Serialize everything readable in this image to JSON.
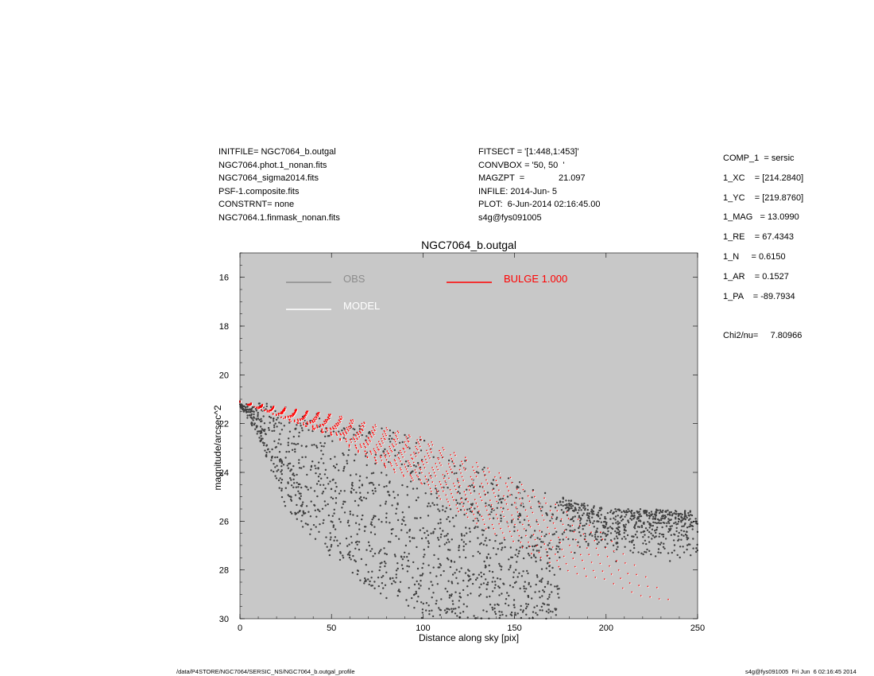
{
  "header_left": [
    "INITFILE= NGC7064_b.outgal",
    "NGC7064.phot.1_nonan.fits",
    "NGC7064_sigma2014.fits",
    "PSF-1.composite.fits",
    "CONSTRNT= none",
    "NGC7064.1.finmask_nonan.fits"
  ],
  "header_mid": [
    "FITSECT = '[1:448,1:453]'",
    "CONVBOX = '50, 50  '",
    "MAGZPT  =              21.097",
    "INFILE: 2014-Jun- 5",
    "PLOT:  6-Jun-2014 02:16:45.00",
    "s4g@fys091005"
  ],
  "header_right": [
    "COMP_1  = sersic",
    "1_XC    = [214.2840]",
    "1_YC    = [219.8760]",
    "1_MAG   = 13.0990",
    "1_RE    = 67.4343",
    "1_N     = 0.6150",
    "1_AR    = 0.1527",
    "1_PA    = -89.7934",
    "",
    "Chi2/nu=     7.80966"
  ],
  "footer_left": "/data/P4STORE/NGC7064/SERSIC_NS/NGC7064_b.outgal_profile",
  "footer_right": "s4g@fys091005  Fri Jun  6 02:16:45 2014",
  "colors": {
    "plot_bg": "#c8c8c8",
    "obs": "#404040",
    "obs_legend": "#8c8c8c",
    "model": "#ffffff",
    "bulge": "#ff0000"
  },
  "chart_data": {
    "type": "scatter",
    "title": "NGC7064_b.outgal",
    "xlabel": "Distance along sky [pix]",
    "ylabel": "magnitude/arcsec^2",
    "xlim": [
      0,
      250
    ],
    "ylim": [
      30,
      15
    ],
    "y_inverted": true,
    "xticks": [
      0,
      50,
      100,
      150,
      200,
      250
    ],
    "yticks": [
      16,
      18,
      20,
      22,
      24,
      26,
      28,
      30
    ],
    "legend": [
      {
        "label": "OBS",
        "color": "#8c8c8c"
      },
      {
        "label": "MODEL",
        "color": "#ffffff"
      },
      {
        "label": "BULGE  1.000",
        "color": "#ff0000"
      }
    ],
    "legend_placement": "top-left",
    "series": [
      {
        "name": "OBS",
        "style": "points",
        "envelope_x": [
          0,
          10,
          25,
          50,
          75,
          100,
          125,
          150,
          175,
          200,
          225,
          250
        ],
        "envelope_y_bright": [
          21.1,
          21.1,
          21.3,
          21.6,
          22.0,
          22.6,
          23.4,
          24.3,
          25.0,
          25.5,
          25.5,
          25.6
        ],
        "envelope_y_faint": [
          21.3,
          22.5,
          25.5,
          27.5,
          29.0,
          30.0,
          30.0,
          30.0,
          30.0,
          30.0,
          30.0,
          30.0
        ],
        "approx_count": 2000
      },
      {
        "name": "MODEL",
        "style": "points",
        "envelope_x": [
          0,
          50,
          100,
          150,
          200,
          234
        ],
        "envelope_y_bright": [
          21.1,
          21.6,
          22.6,
          24.3,
          26.6,
          29.2
        ],
        "approx_count": 1500
      },
      {
        "name": "BULGE  1.000",
        "style": "points",
        "envelope_x": [
          0,
          50,
          100,
          150,
          200,
          234
        ],
        "envelope_y_bright": [
          21.1,
          21.6,
          22.6,
          24.3,
          26.6,
          29.2
        ],
        "approx_count": 1500
      }
    ]
  }
}
